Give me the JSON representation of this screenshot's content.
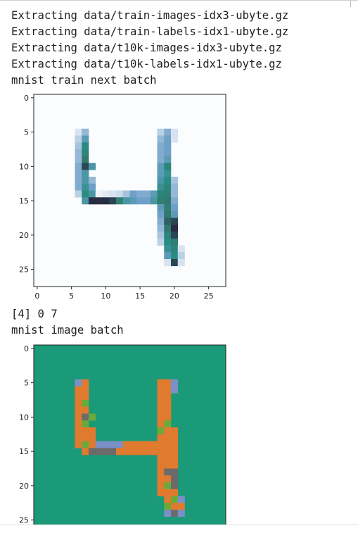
{
  "output": {
    "lines": [
      "Extracting data/train-images-idx3-ubyte.gz",
      "Extracting data/train-labels-idx1-ubyte.gz",
      "Extracting data/t10k-images-idx3-ubyte.gz",
      "Extracting data/t10k-labels-idx1-ubyte.gz",
      "mnist train next batch"
    ],
    "label_line": "[4] 0 7",
    "image_batch_title": "mnist image batch"
  },
  "chart_data": [
    {
      "type": "heatmap",
      "title": "",
      "colormap": "PuBuGn-like (white to dark slate)",
      "x_ticks": [
        "0",
        "5",
        "10",
        "15",
        "20",
        "25"
      ],
      "y_ticks": [
        "0",
        "5",
        "10",
        "15",
        "20",
        "25"
      ],
      "xlim": [
        -0.5,
        27.5
      ],
      "ylim": [
        27.5,
        -0.5
      ],
      "cells": [
        [
          5,
          6,
          0.2
        ],
        [
          5,
          7,
          0.4
        ],
        [
          5,
          18,
          0.3
        ],
        [
          5,
          19,
          0.45
        ],
        [
          5,
          20,
          0.2
        ],
        [
          6,
          6,
          0.3
        ],
        [
          6,
          7,
          0.55
        ],
        [
          6,
          18,
          0.4
        ],
        [
          6,
          19,
          0.5
        ],
        [
          6,
          20,
          0.2
        ],
        [
          7,
          6,
          0.35
        ],
        [
          7,
          7,
          0.7
        ],
        [
          7,
          18,
          0.45
        ],
        [
          7,
          19,
          0.5
        ],
        [
          8,
          6,
          0.4
        ],
        [
          8,
          7,
          0.75
        ],
        [
          8,
          18,
          0.45
        ],
        [
          8,
          19,
          0.5
        ],
        [
          9,
          6,
          0.4
        ],
        [
          9,
          7,
          0.85
        ],
        [
          9,
          18,
          0.45
        ],
        [
          9,
          19,
          0.55
        ],
        [
          10,
          6,
          0.45
        ],
        [
          10,
          7,
          0.95
        ],
        [
          10,
          8,
          0.6
        ],
        [
          10,
          18,
          0.55
        ],
        [
          10,
          19,
          0.75
        ],
        [
          11,
          6,
          0.45
        ],
        [
          11,
          7,
          0.6
        ],
        [
          11,
          18,
          0.55
        ],
        [
          11,
          19,
          0.65
        ],
        [
          12,
          6,
          0.45
        ],
        [
          12,
          7,
          0.6
        ],
        [
          12,
          8,
          0.4
        ],
        [
          12,
          18,
          0.6
        ],
        [
          12,
          19,
          0.7
        ],
        [
          12,
          20,
          0.35
        ],
        [
          13,
          6,
          0.45
        ],
        [
          13,
          7,
          0.65
        ],
        [
          13,
          8,
          0.5
        ],
        [
          13,
          18,
          0.65
        ],
        [
          13,
          19,
          0.75
        ],
        [
          13,
          20,
          0.4
        ],
        [
          14,
          6,
          0.3
        ],
        [
          14,
          7,
          0.7
        ],
        [
          14,
          8,
          0.6
        ],
        [
          14,
          9,
          0.1
        ],
        [
          14,
          10,
          0.15
        ],
        [
          14,
          11,
          0.2
        ],
        [
          14,
          12,
          0.25
        ],
        [
          14,
          13,
          0.35
        ],
        [
          14,
          14,
          0.5
        ],
        [
          14,
          15,
          0.45
        ],
        [
          14,
          16,
          0.45
        ],
        [
          14,
          17,
          0.55
        ],
        [
          14,
          18,
          0.75
        ],
        [
          14,
          19,
          0.8
        ],
        [
          14,
          20,
          0.4
        ],
        [
          15,
          7,
          0.6
        ],
        [
          15,
          8,
          1.0
        ],
        [
          15,
          9,
          1.0
        ],
        [
          15,
          10,
          1.0
        ],
        [
          15,
          11,
          0.95
        ],
        [
          15,
          12,
          0.8
        ],
        [
          15,
          13,
          0.6
        ],
        [
          15,
          14,
          0.55
        ],
        [
          15,
          15,
          0.5
        ],
        [
          15,
          16,
          0.5
        ],
        [
          15,
          17,
          0.6
        ],
        [
          15,
          18,
          0.8
        ],
        [
          15,
          19,
          0.85
        ],
        [
          15,
          20,
          0.45
        ],
        [
          16,
          18,
          0.55
        ],
        [
          16,
          19,
          0.8
        ],
        [
          16,
          20,
          0.5
        ],
        [
          17,
          18,
          0.5
        ],
        [
          17,
          19,
          0.85
        ],
        [
          17,
          20,
          0.55
        ],
        [
          18,
          18,
          0.45
        ],
        [
          18,
          19,
          0.9
        ],
        [
          18,
          20,
          0.95
        ],
        [
          19,
          18,
          0.4
        ],
        [
          19,
          19,
          0.85
        ],
        [
          19,
          20,
          1.0
        ],
        [
          20,
          18,
          0.35
        ],
        [
          20,
          19,
          0.75
        ],
        [
          20,
          20,
          0.95
        ],
        [
          21,
          18,
          0.3
        ],
        [
          21,
          19,
          0.7
        ],
        [
          21,
          20,
          0.8
        ],
        [
          22,
          19,
          0.65
        ],
        [
          22,
          20,
          0.75
        ],
        [
          22,
          21,
          0.2
        ],
        [
          23,
          19,
          0.55
        ],
        [
          23,
          20,
          0.7
        ],
        [
          23,
          21,
          0.3
        ],
        [
          24,
          19,
          0.2
        ],
        [
          24,
          20,
          0.95
        ],
        [
          24,
          21,
          0.2
        ]
      ]
    },
    {
      "type": "heatmap",
      "title": "",
      "background": "#1a9a78",
      "x_ticks": [],
      "y_ticks": [
        "0",
        "5",
        "10",
        "15",
        "20",
        "25"
      ],
      "cells_shared_with": 0
    }
  ],
  "colors": {
    "background": "#ffffff",
    "text": "#212121",
    "heatmap2_background": "#1a9a78",
    "heatmap2_orange": "#e07a2e",
    "heatmap2_green": "#6aaa3a",
    "heatmap2_gray": "#6b6b6b",
    "heatmap2_blue": "#7b8fc8"
  }
}
